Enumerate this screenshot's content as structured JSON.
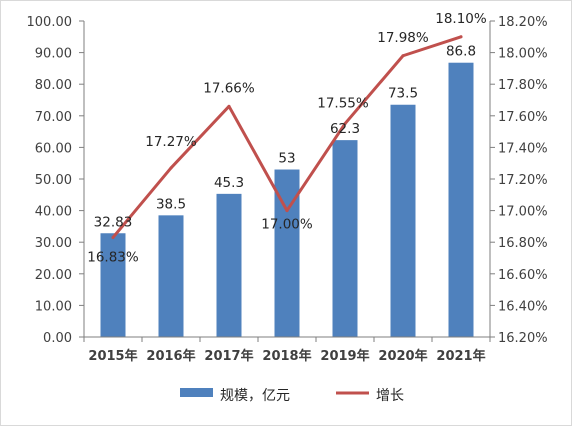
{
  "chart_data": {
    "type": "bar",
    "categories": [
      "2015年",
      "2016年",
      "2017年",
      "2018年",
      "2019年",
      "2020年",
      "2021年"
    ],
    "series": [
      {
        "name": "规模，亿元",
        "type": "bar",
        "axis": "left",
        "values": [
          32.83,
          38.5,
          45.3,
          53,
          62.3,
          73.5,
          86.8
        ],
        "labels": [
          "32.83",
          "38.5",
          "45.3",
          "53",
          "62.3",
          "73.5",
          "86.8"
        ]
      },
      {
        "name": "增长",
        "type": "line",
        "axis": "right",
        "values": [
          16.83,
          17.27,
          17.66,
          17.0,
          17.55,
          17.98,
          18.1
        ],
        "labels": [
          "16.83%",
          "17.27%",
          "17.66%",
          "17.00%",
          "17.55%",
          "17.98%",
          "18.10%"
        ]
      }
    ],
    "left_axis": {
      "ylim": [
        0,
        100
      ],
      "ticks": [
        "0.00",
        "10.00",
        "20.00",
        "30.00",
        "40.00",
        "50.00",
        "60.00",
        "70.00",
        "80.00",
        "90.00",
        "100.00"
      ]
    },
    "right_axis": {
      "ylim": [
        16.2,
        18.2
      ],
      "ticks": [
        "16.20%",
        "16.40%",
        "16.60%",
        "16.80%",
        "17.00%",
        "17.20%",
        "17.40%",
        "17.60%",
        "17.80%",
        "18.00%",
        "18.20%"
      ]
    },
    "grid": false,
    "legend_position": "bottom",
    "colors": {
      "bar": "#4f81bd",
      "line": "#c0504d",
      "axis": "#7f7f7f"
    }
  }
}
